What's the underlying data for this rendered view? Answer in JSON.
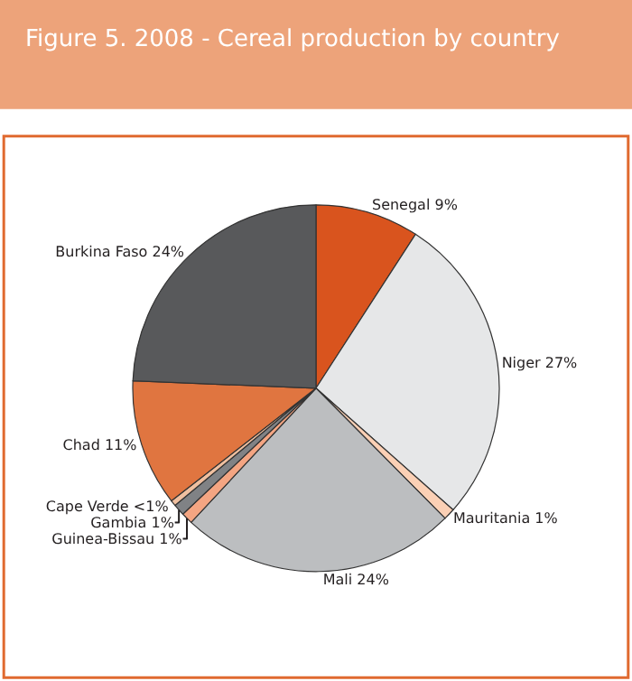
{
  "chart_data": {
    "type": "pie",
    "title": "Figure 5. 2008 - Cereal production by country",
    "categories": [
      "Senegal",
      "Niger",
      "Mauritania",
      "Mali",
      "Guinea-Bissau",
      "Gambia",
      "Cape Verde",
      "Chad",
      "Burkina Faso"
    ],
    "values": [
      9,
      27,
      1,
      24,
      1,
      1,
      0.5,
      11,
      24
    ],
    "value_labels": [
      "9%",
      "27%",
      "1%",
      "24%",
      "1%",
      "1%",
      "<1%",
      "11%",
      "24%"
    ],
    "colors": [
      "#d9541e",
      "#e6e7e8",
      "#fbd0b5",
      "#bcbec0",
      "#f4a582",
      "#808285",
      "#f0c0a0",
      "#e07540",
      "#58595b"
    ],
    "legend": false
  }
}
